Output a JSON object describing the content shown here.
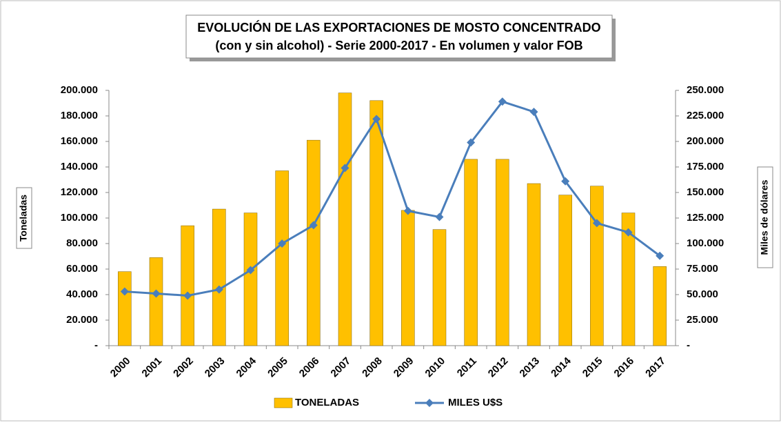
{
  "chart_data": {
    "type": "bar_line",
    "title": "EVOLUCIÓN DE LAS EXPORTACIONES DE MOSTO CONCENTRADO",
    "subtitle": "(con y sin alcohol) - Serie 2000-2017 - En volumen y valor FOB",
    "ylabel": "Toneladas",
    "y2label": "Miles de dólares",
    "categories": [
      "2000",
      "2001",
      "2002",
      "2003",
      "2004",
      "2005",
      "2006",
      "2007",
      "2008",
      "2009",
      "2010",
      "2011",
      "2012",
      "2013",
      "2014",
      "2015",
      "2016",
      "2017"
    ],
    "series": [
      {
        "name": "TONELADAS",
        "type": "bar",
        "color": "#ffc000",
        "values": [
          58000,
          69000,
          94000,
          107000,
          104000,
          137000,
          161000,
          198000,
          192000,
          106000,
          91000,
          146000,
          146000,
          127000,
          118000,
          125000,
          104000,
          62000
        ]
      },
      {
        "name": "MILES U$S",
        "type": "line",
        "axis": "y2",
        "color": "#4a7ebb",
        "values": [
          53000,
          51000,
          49000,
          55000,
          74000,
          100000,
          118000,
          174000,
          222000,
          132000,
          126000,
          199000,
          239000,
          229000,
          161000,
          120000,
          111000,
          88000
        ]
      }
    ],
    "ylim": [
      0,
      200000
    ],
    "yticks": [
      {
        "value": 0,
        "label": "-"
      },
      {
        "value": 20000,
        "label": "20.000"
      },
      {
        "value": 40000,
        "label": "40.000"
      },
      {
        "value": 60000,
        "label": "60.000"
      },
      {
        "value": 80000,
        "label": "80.000"
      },
      {
        "value": 100000,
        "label": "100.000"
      },
      {
        "value": 120000,
        "label": "120.000"
      },
      {
        "value": 140000,
        "label": "140.000"
      },
      {
        "value": 160000,
        "label": "160.000"
      },
      {
        "value": 180000,
        "label": "180.000"
      },
      {
        "value": 200000,
        "label": "200.000"
      }
    ],
    "y2lim": [
      0,
      250000
    ],
    "y2ticks": [
      {
        "value": 0,
        "label": "-"
      },
      {
        "value": 25000,
        "label": "25.000"
      },
      {
        "value": 50000,
        "label": "50.000"
      },
      {
        "value": 75000,
        "label": "75.000"
      },
      {
        "value": 100000,
        "label": "100.000"
      },
      {
        "value": 125000,
        "label": "125.000"
      },
      {
        "value": 150000,
        "label": "150.000"
      },
      {
        "value": 175000,
        "label": "175.000"
      },
      {
        "value": 200000,
        "label": "200.000"
      },
      {
        "value": 225000,
        "label": "225.000"
      },
      {
        "value": 250000,
        "label": "250.000"
      }
    ],
    "legend": "bottom"
  }
}
